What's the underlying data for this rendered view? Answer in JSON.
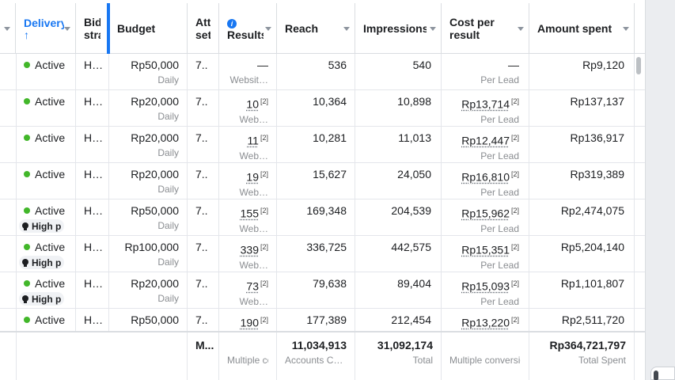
{
  "columns": {
    "delivery": "Delivery",
    "bid_strategy": "Bid strategy",
    "budget": "Budget",
    "attribution": "Attribution setting",
    "results": "Results",
    "reach": "Reach",
    "impressions": "Impressions",
    "cost_per_result": "Cost per result",
    "amount_spent": "Amount spent"
  },
  "rows": [
    {
      "status": "Active",
      "bid": "H…",
      "budget": "Rp50,000",
      "budget_type": "Daily",
      "attr": "7..",
      "results": "—",
      "results_type": "Websit…",
      "reach": "536",
      "impressions": "540",
      "cpr": "—",
      "cpr_type": "Per Lead",
      "spent": "Rp9,120"
    },
    {
      "status": "Active",
      "bid": "H…",
      "budget": "Rp20,000",
      "budget_type": "Daily",
      "attr": "7..",
      "results": "10",
      "results_note": "[2]",
      "results_type": "Web…",
      "reach": "10,364",
      "impressions": "10,898",
      "cpr": "Rp13,714",
      "cpr_note": "[2]",
      "cpr_type": "Per Lead",
      "spent": "Rp137,137"
    },
    {
      "status": "Active",
      "bid": "H…",
      "budget": "Rp20,000",
      "budget_type": "Daily",
      "attr": "7..",
      "results": "11",
      "results_note": "[2]",
      "results_type": "Web…",
      "reach": "10,281",
      "impressions": "11,013",
      "cpr": "Rp12,447",
      "cpr_note": "[2]",
      "cpr_type": "Per Lead",
      "spent": "Rp136,917"
    },
    {
      "status": "Active",
      "bid": "H…",
      "budget": "Rp20,000",
      "budget_type": "Daily",
      "attr": "7..",
      "results": "19",
      "results_note": "[2]",
      "results_type": "Web…",
      "reach": "15,627",
      "impressions": "24,050",
      "cpr": "Rp16,810",
      "cpr_note": "[2]",
      "cpr_type": "Per Lead",
      "spent": "Rp319,389"
    },
    {
      "status": "Active",
      "badge": "High p",
      "bid": "H…",
      "budget": "Rp50,000",
      "budget_type": "Daily",
      "attr": "7..",
      "results": "155",
      "results_note": "[2]",
      "results_type": "Web…",
      "reach": "169,348",
      "impressions": "204,539",
      "cpr": "Rp15,962",
      "cpr_note": "[2]",
      "cpr_type": "Per Lead",
      "spent": "Rp2,474,075"
    },
    {
      "status": "Active",
      "badge": "High p",
      "bid": "H…",
      "budget": "Rp100,000",
      "budget_type": "Daily",
      "attr": "7..",
      "results": "339",
      "results_note": "[2]",
      "results_type": "Web…",
      "reach": "336,725",
      "impressions": "442,575",
      "cpr": "Rp15,351",
      "cpr_note": "[2]",
      "cpr_type": "Per Lead",
      "spent": "Rp5,204,140"
    },
    {
      "status": "Active",
      "badge": "High p",
      "bid": "H…",
      "budget": "Rp20,000",
      "budget_type": "Daily",
      "attr": "7..",
      "results": "73",
      "results_note": "[2]",
      "results_type": "Web…",
      "reach": "79,638",
      "impressions": "89,404",
      "cpr": "Rp15,093",
      "cpr_note": "[2]",
      "cpr_type": "Per Lead",
      "spent": "Rp1,101,807"
    },
    {
      "status": "Active",
      "bid": "H…",
      "budget": "Rp50,000",
      "budget_type": "",
      "attr": "7..",
      "results": "190",
      "results_note": "[2]",
      "results_type": "",
      "reach": "177,389",
      "impressions": "212,454",
      "cpr": "Rp13,220",
      "cpr_note": "[2]",
      "cpr_type": "",
      "spent": "Rp2,511,720"
    }
  ],
  "totals": {
    "attr": "M...",
    "results_sub": "Multiple conversions",
    "reach": "11,034,913",
    "reach_sub": "Accounts Centre accounts",
    "impressions": "31,092,174",
    "impressions_sub": "Total",
    "cpr_sub": "Multiple conversions",
    "spent": "Rp364,721,797",
    "spent_sub": "Total Spent"
  },
  "colors": {
    "accent": "#1877f2",
    "active": "#42b72a"
  }
}
